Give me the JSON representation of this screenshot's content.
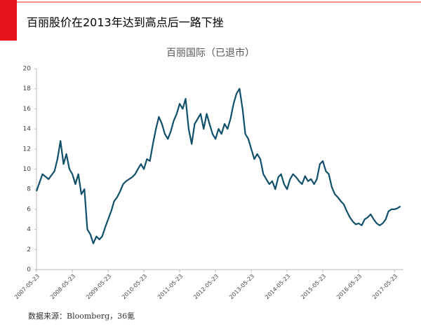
{
  "chart_data": {
    "type": "line",
    "header": "百丽股价在2013年达到高点后一路下挫",
    "title": "百丽国际（已退市）",
    "source": "数据来源：Bloomberg，36氪",
    "x": [
      "2007-05-23",
      "2007-07-23",
      "2007-09-23",
      "2007-11-23",
      "2007-12-23",
      "2008-01-23",
      "2008-02-23",
      "2008-03-23",
      "2008-04-23",
      "2008-05-23",
      "2008-06-23",
      "2008-07-23",
      "2008-08-23",
      "2008-09-23",
      "2008-10-23",
      "2008-11-23",
      "2008-12-23",
      "2009-01-23",
      "2009-02-23",
      "2009-03-23",
      "2009-04-23",
      "2009-05-23",
      "2009-06-23",
      "2009-07-23",
      "2009-08-23",
      "2009-09-23",
      "2009-10-23",
      "2009-11-23",
      "2009-12-23",
      "2010-01-23",
      "2010-02-23",
      "2010-03-23",
      "2010-04-23",
      "2010-05-23",
      "2010-06-23",
      "2010-07-23",
      "2010-08-23",
      "2010-09-23",
      "2010-10-23",
      "2010-11-23",
      "2010-12-23",
      "2011-01-23",
      "2011-02-23",
      "2011-03-23",
      "2011-04-23",
      "2011-05-23",
      "2011-06-23",
      "2011-07-23",
      "2011-08-23",
      "2011-09-23",
      "2011-10-23",
      "2011-11-23",
      "2011-12-23",
      "2012-01-23",
      "2012-02-23",
      "2012-03-23",
      "2012-04-23",
      "2012-05-23",
      "2012-06-23",
      "2012-07-23",
      "2012-08-23",
      "2012-09-23",
      "2012-10-23",
      "2012-11-23",
      "2012-12-23",
      "2013-01-23",
      "2013-02-23",
      "2013-03-23",
      "2013-04-23",
      "2013-05-23",
      "2013-06-23",
      "2013-07-23",
      "2013-08-23",
      "2013-09-23",
      "2013-10-23",
      "2013-11-23",
      "2013-12-23",
      "2014-01-23",
      "2014-02-23",
      "2014-03-23",
      "2014-04-23",
      "2014-05-23",
      "2014-06-23",
      "2014-07-23",
      "2014-08-23",
      "2014-09-23",
      "2014-10-23",
      "2014-11-23",
      "2014-12-23",
      "2015-01-23",
      "2015-02-23",
      "2015-03-23",
      "2015-04-23",
      "2015-05-23",
      "2015-06-23",
      "2015-07-23",
      "2015-08-23",
      "2015-09-23",
      "2015-10-23",
      "2015-11-23",
      "2015-12-23",
      "2016-01-23",
      "2016-02-23",
      "2016-03-23",
      "2016-04-23",
      "2016-05-23",
      "2016-06-23",
      "2016-07-23",
      "2016-08-23",
      "2016-09-23",
      "2016-10-23",
      "2016-11-23",
      "2016-12-23",
      "2017-01-23",
      "2017-02-23",
      "2017-03-23",
      "2017-04-23",
      "2017-05-23",
      "2017-06-23",
      "2017-07-23"
    ],
    "values": [
      7.8,
      9.5,
      9.0,
      9.8,
      11.0,
      12.8,
      10.5,
      11.5,
      10.0,
      9.5,
      8.5,
      9.5,
      7.5,
      8.0,
      4.0,
      3.5,
      2.6,
      3.3,
      3.0,
      3.3,
      4.2,
      5.0,
      5.8,
      6.8,
      7.2,
      7.8,
      8.5,
      8.8,
      9.0,
      9.2,
      9.5,
      10.0,
      10.5,
      10.0,
      11.0,
      10.8,
      12.5,
      14.0,
      15.2,
      14.5,
      13.5,
      13.0,
      13.8,
      14.8,
      15.5,
      16.5,
      16.0,
      17.0,
      14.0,
      12.5,
      14.5,
      15.0,
      15.5,
      14.0,
      15.5,
      14.5,
      13.5,
      13.0,
      14.0,
      13.5,
      14.5,
      14.0,
      15.0,
      16.5,
      17.5,
      18.0,
      16.0,
      13.5,
      13.0,
      12.0,
      11.0,
      11.5,
      11.0,
      9.5,
      9.0,
      8.5,
      8.8,
      8.0,
      9.2,
      9.5,
      8.5,
      8.0,
      9.0,
      9.5,
      9.2,
      8.8,
      8.5,
      9.3,
      8.8,
      9.0,
      8.5,
      9.0,
      10.5,
      10.8,
      9.8,
      9.5,
      8.2,
      7.5,
      7.2,
      6.8,
      6.5,
      5.8,
      5.2,
      4.8,
      4.5,
      4.6,
      4.4,
      5.0,
      5.2,
      5.5,
      5.0,
      4.6,
      4.4,
      4.6,
      5.0,
      5.8,
      6.0,
      6.0,
      6.1,
      6.3
    ],
    "color": "#10506b",
    "xlim": [
      "2007-05-23",
      "2017-08-23"
    ],
    "xticks": [
      "2007-05-23",
      "2008-05-23",
      "2009-05-23",
      "2010-05-23",
      "2011-05-23",
      "2012-05-23",
      "2013-05-23",
      "2014-05-23",
      "2015-05-23",
      "2016-05-23",
      "2017-05-23"
    ],
    "ylim": [
      0,
      20
    ],
    "yticks": [
      0,
      2,
      4,
      6,
      8,
      10,
      12,
      14,
      16,
      18,
      20
    ]
  }
}
